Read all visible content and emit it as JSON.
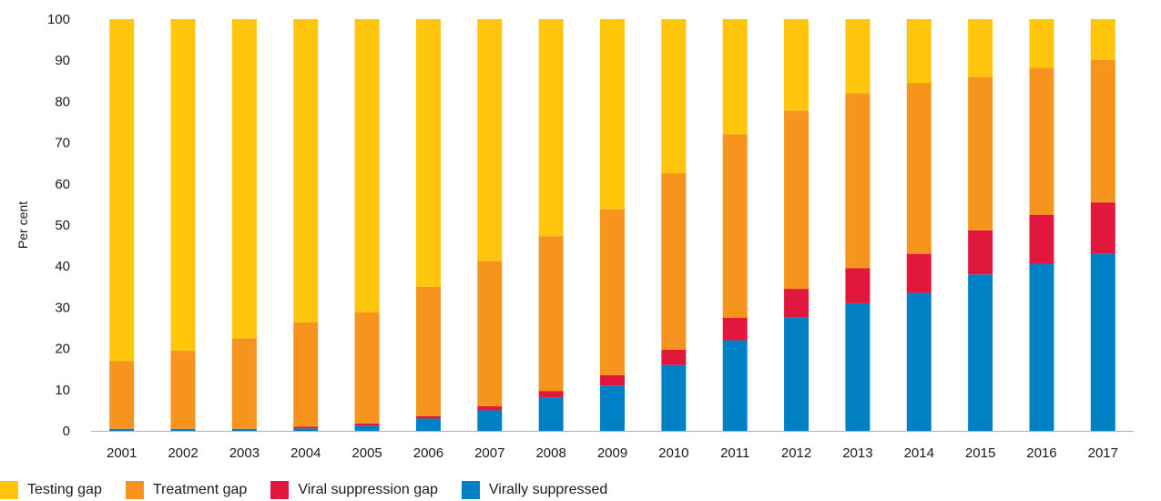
{
  "chart_data": {
    "type": "bar",
    "stacked": true,
    "ylabel": "Per cent",
    "xlabel": "",
    "ylim": [
      0,
      100
    ],
    "yticks": [
      0,
      10,
      20,
      30,
      40,
      50,
      60,
      70,
      80,
      90,
      100
    ],
    "grid": false,
    "legend_position": "bottom-left",
    "categories": [
      "2001",
      "2002",
      "2003",
      "2004",
      "2005",
      "2006",
      "2007",
      "2008",
      "2009",
      "2010",
      "2011",
      "2012",
      "2013",
      "2014",
      "2015",
      "2016",
      "2017"
    ],
    "series": [
      {
        "name": "Virally suppressed",
        "color": "#0081c6",
        "values": [
          0.5,
          0.5,
          0.5,
          0.6,
          1.3,
          3,
          5,
          8,
          11,
          16,
          22,
          27.5,
          31,
          33.5,
          38,
          40.5,
          43
        ]
      },
      {
        "name": "Viral suppression gap",
        "color": "#e2173d",
        "values": [
          0,
          0,
          0,
          0.4,
          0.5,
          0.6,
          1,
          1.7,
          2.5,
          3.7,
          5.5,
          7,
          8.5,
          9.5,
          10.7,
          12,
          12.5
        ]
      },
      {
        "name": "Treatment gap",
        "color": "#f7941d",
        "values": [
          16.5,
          19,
          22,
          25.4,
          27,
          31.4,
          35.3,
          37.6,
          40.3,
          42.9,
          44.5,
          43.3,
          42.5,
          41.5,
          37.3,
          35.7,
          34.7
        ]
      },
      {
        "name": "Testing gap",
        "color": "#ffc60b",
        "values": [
          83,
          80.5,
          77.5,
          73.6,
          71.2,
          65,
          58.7,
          52.7,
          46.2,
          37.4,
          28,
          22.2,
          18,
          15.5,
          14,
          11.8,
          9.8
        ]
      }
    ]
  },
  "legend": [
    {
      "label": "Testing gap",
      "color": "#ffc60b"
    },
    {
      "label": "Treatment gap",
      "color": "#f7941d"
    },
    {
      "label": "Viral suppression gap",
      "color": "#e2173d"
    },
    {
      "label": "Virally suppressed",
      "color": "#0081c6"
    }
  ]
}
